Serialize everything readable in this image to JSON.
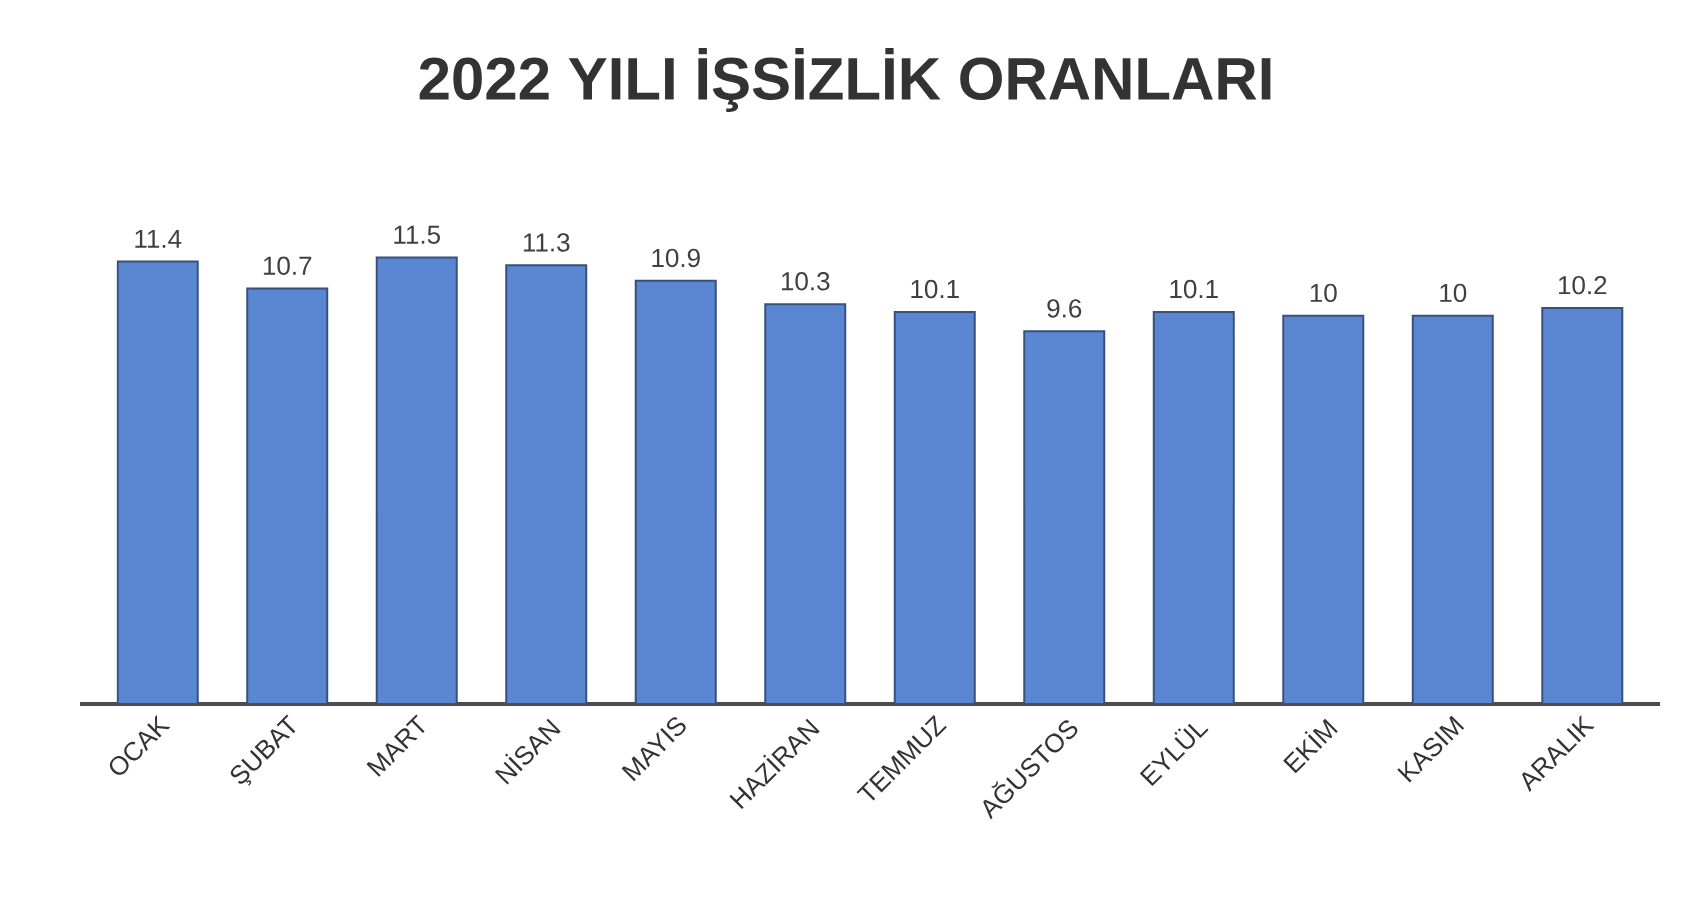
{
  "chart_data": {
    "type": "bar",
    "title": "2022 YILI İŞSİZLİK ORANLARI",
    "categories": [
      "OCAK",
      "ŞUBAT",
      "MART",
      "NİSAN",
      "MAYIS",
      "HAZİRAN",
      "TEMMUZ",
      "AĞUSTOS",
      "EYLÜL",
      "EKİM",
      "KASIM",
      "ARALIK"
    ],
    "values": [
      11.4,
      10.7,
      11.5,
      11.3,
      10.9,
      10.3,
      10.1,
      9.6,
      10.1,
      10,
      10,
      10.2
    ],
    "color": "#5b87d2",
    "tick_labels": "x",
    "data_labels": true
  }
}
